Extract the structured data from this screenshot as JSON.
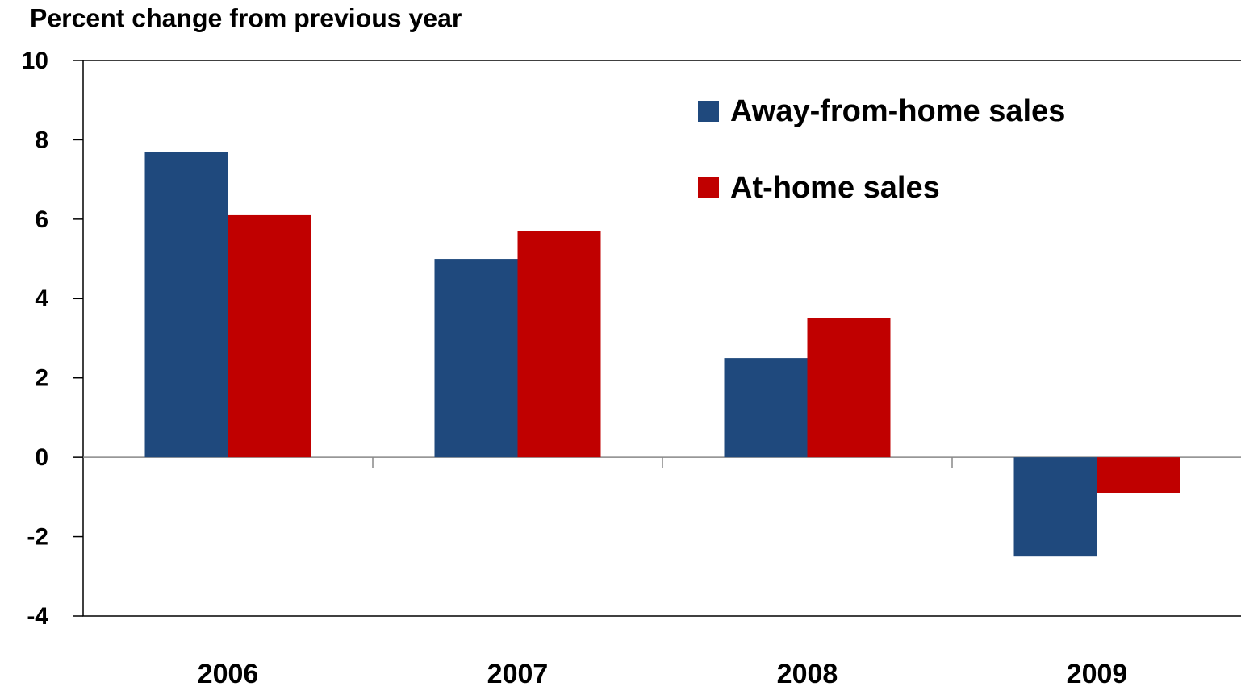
{
  "chart_data": {
    "type": "bar",
    "y_label": "Percent change from previous year",
    "categories": [
      "2006",
      "2007",
      "2008",
      "2009"
    ],
    "series": [
      {
        "name": "Away-from-home sales",
        "color": "#1f497d",
        "values": [
          7.7,
          5.0,
          2.5,
          -2.5
        ]
      },
      {
        "name": "At-home sales",
        "color": "#c00000",
        "values": [
          6.1,
          5.7,
          3.5,
          -0.9
        ]
      }
    ],
    "ylim": [
      -4,
      10
    ],
    "yticks": [
      -4,
      -2,
      0,
      2,
      4,
      6,
      8,
      10
    ],
    "legend": "top-right"
  }
}
